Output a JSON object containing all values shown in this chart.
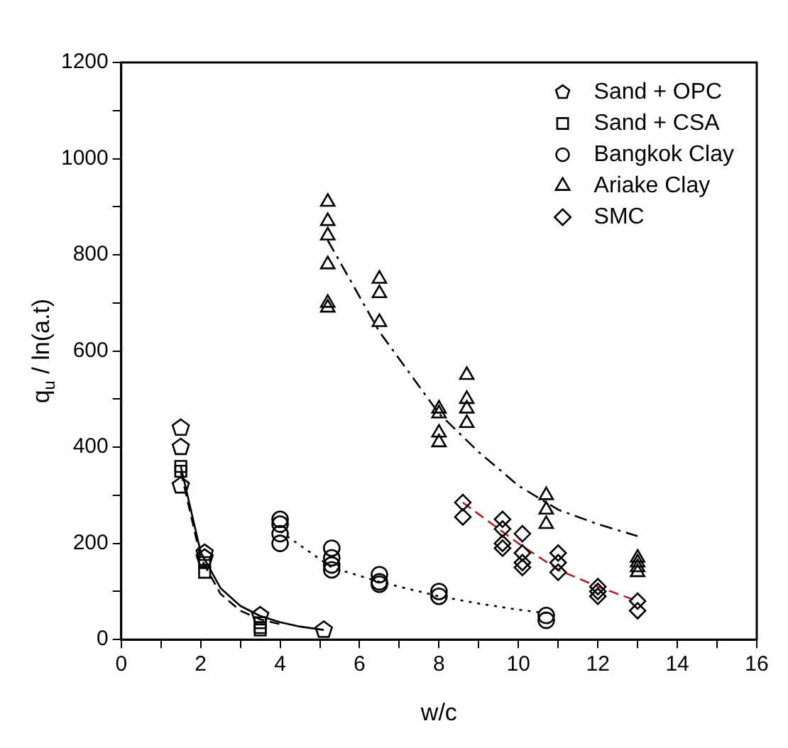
{
  "chart_data": {
    "type": "scatter",
    "xlabel": "w/c",
    "ylabel": "q$_{u}$ / ln(a.t)",
    "xlim": [
      0,
      16
    ],
    "xticks": [
      0,
      {
        "value": 1,
        "label": null
      },
      2,
      {
        "value": 3,
        "label": null
      },
      4,
      {
        "value": 5,
        "label": null
      },
      6,
      {
        "value": 7,
        "label": null
      },
      8,
      {
        "value": 9,
        "label": null
      },
      10,
      {
        "value": 11,
        "label": null
      },
      12,
      {
        "value": 13,
        "label": null
      },
      14,
      {
        "value": 15,
        "label": null
      },
      16
    ],
    "ylim": [
      0,
      1200
    ],
    "yticks": [
      0,
      {
        "value": 100,
        "label": null
      },
      200,
      {
        "value": 300,
        "label": null
      },
      400,
      {
        "value": 500,
        "label": null
      },
      600,
      {
        "value": 700,
        "label": null
      },
      800,
      {
        "value": 900,
        "label": null
      },
      1000,
      {
        "value": 1100,
        "label": null
      },
      1200
    ],
    "grid": false,
    "legend": "top right",
    "series": [
      {
        "name": "Sand + OPC",
        "color": "#000000",
        "x": [
          1.5,
          1.5,
          1.5,
          2.1,
          2.1,
          3.5,
          5.1
        ],
        "values": [
          440,
          400,
          320,
          180,
          170,
          50,
          20
        ]
      },
      {
        "name": "Sand + CSA",
        "color": "#000000",
        "marker": "square",
        "x": [
          1.5,
          1.5,
          2.1,
          2.1,
          3.5,
          3.5,
          3.5
        ],
        "values": [
          360,
          350,
          160,
          140,
          35,
          25,
          20
        ]
      },
      {
        "name": "Bangkok Clay",
        "color": "#000000",
        "marker": "circle",
        "x": [
          4,
          4,
          4,
          4,
          5.3,
          5.3,
          5.3,
          5.3,
          6.5,
          6.5,
          6.5,
          8,
          8,
          10.7,
          10.7
        ],
        "values": [
          250,
          240,
          220,
          200,
          190,
          170,
          155,
          145,
          135,
          120,
          115,
          100,
          90,
          50,
          40
        ]
      },
      {
        "name": "Ariake Clay",
        "color": "#000000",
        "marker": "triangle",
        "x": [
          5.2,
          5.2,
          5.2,
          5.2,
          5.2,
          5.2,
          6.5,
          6.5,
          6.5,
          8,
          8,
          8,
          8,
          8.7,
          8.7,
          8.7,
          8.7,
          10.7,
          10.7,
          10.7,
          13,
          13,
          13,
          13
        ],
        "values": [
          910,
          870,
          840,
          780,
          700,
          690,
          750,
          720,
          660,
          480,
          470,
          430,
          410,
          550,
          500,
          480,
          450,
          300,
          270,
          240,
          170,
          160,
          150,
          140
        ]
      },
      {
        "name": "SMC",
        "color": "#000000",
        "marker": "diamond",
        "x": [
          8.6,
          8.6,
          9.6,
          9.6,
          9.6,
          9.6,
          10.1,
          10.1,
          10.1,
          10.1,
          11,
          11,
          11,
          12,
          12,
          12,
          13,
          13
        ],
        "values": [
          285,
          255,
          250,
          230,
          200,
          190,
          220,
          180,
          160,
          150,
          180,
          160,
          140,
          110,
          100,
          90,
          80,
          60
        ]
      },
      {
        "type": "line",
        "color": "#000000",
        "marker": "none",
        "line_style": "solid",
        "x": [
          1.5,
          2,
          2.5,
          3,
          3.5,
          4,
          4.5,
          5.1
        ],
        "values": [
          360,
          182,
          107,
          70,
          49,
          36,
          27,
          20
        ]
      },
      {
        "type": "line",
        "color": "#000000",
        "marker": "none",
        "line_style": "dashed",
        "x": [
          1.5,
          2,
          2.5,
          3,
          3.5,
          4
        ],
        "values": [
          350,
          170,
          95,
          60,
          42,
          32
        ]
      },
      {
        "type": "line",
        "color": "#000000",
        "marker": "none",
        "line_style": "dotted",
        "x": [
          4,
          5.3,
          6.5,
          8,
          9,
          10,
          10.7
        ],
        "values": [
          225,
          150,
          120,
          90,
          75,
          62,
          55
        ]
      },
      {
        "type": "line",
        "color": "#000000",
        "marker": "none",
        "line_style": "dashdot",
        "x": [
          5.2,
          6.5,
          8,
          9,
          10,
          11,
          12,
          13
        ],
        "values": [
          830,
          640,
          470,
          390,
          320,
          270,
          240,
          215
        ]
      },
      {
        "type": "line",
        "color": "#b22222",
        "marker": "none",
        "line_style": "dashed",
        "x": [
          8.6,
          10,
          11,
          12,
          13
        ],
        "values": [
          285,
          200,
          145,
          110,
          80
        ]
      }
    ]
  }
}
